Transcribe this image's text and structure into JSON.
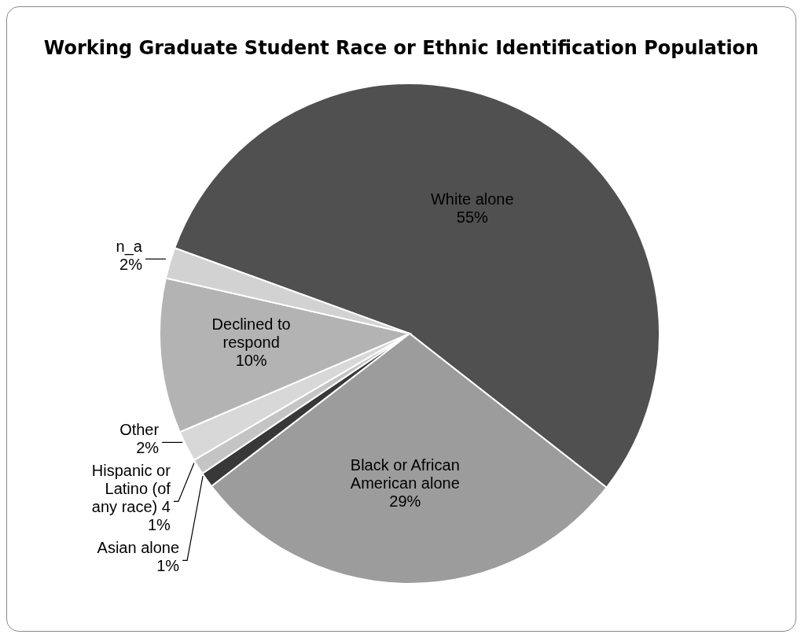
{
  "chart_data": {
    "type": "pie",
    "title": "Working Graduate Student Race or Ethnic Identification Population",
    "categories": [
      "White alone",
      "Black or African American alone",
      "Asian alone",
      "Hispanic or Latino (of any race) 4",
      "Other",
      "Declined to respond",
      "n_a"
    ],
    "values": [
      55,
      29,
      1,
      1,
      2,
      10,
      2
    ],
    "value_labels": [
      "55%",
      "29%",
      "1%",
      "1%",
      "2%",
      "10%",
      "2%"
    ],
    "colors": [
      "#505050",
      "#9c9c9c",
      "#383838",
      "#c4c4c4",
      "#d8d8d8",
      "#b3b3b3",
      "#d2d2d2"
    ]
  }
}
